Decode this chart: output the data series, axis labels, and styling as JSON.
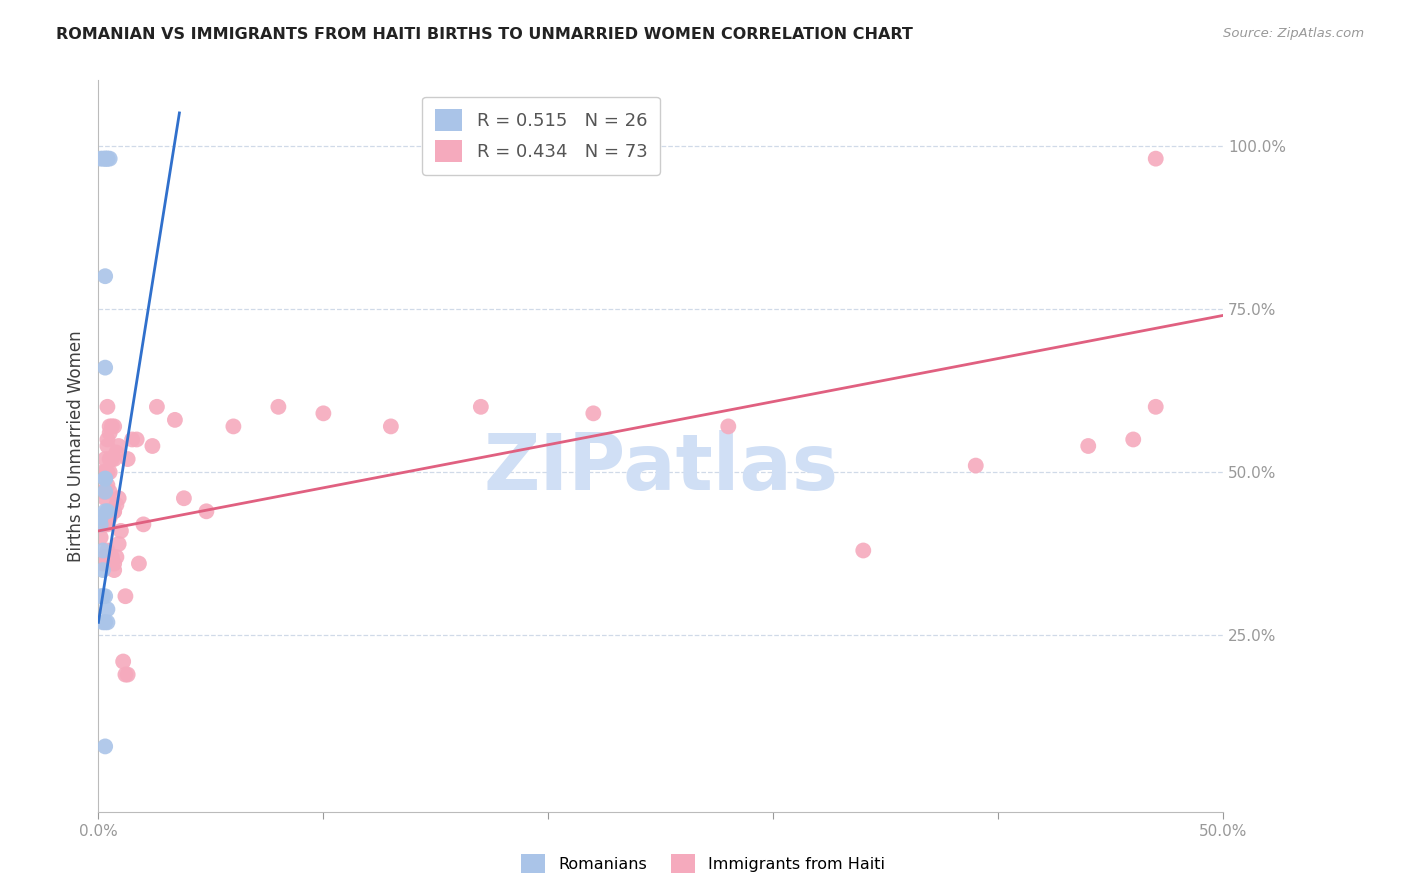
{
  "title": "ROMANIAN VS IMMIGRANTS FROM HAITI BIRTHS TO UNMARRIED WOMEN CORRELATION CHART",
  "source": "Source: ZipAtlas.com",
  "ylabel": "Births to Unmarried Women",
  "xlim": [
    0.0,
    0.5
  ],
  "ylim": [
    -0.02,
    1.1
  ],
  "xticks": [
    0.0,
    0.1,
    0.2,
    0.3,
    0.4,
    0.5
  ],
  "xticklabels": [
    "0.0%",
    "",
    "",
    "",
    "",
    "50.0%"
  ],
  "yticks": [
    0.25,
    0.5,
    0.75,
    1.0
  ],
  "yticklabels": [
    "25.0%",
    "50.0%",
    "75.0%",
    "100.0%"
  ],
  "R_blue": 0.515,
  "N_blue": 26,
  "R_pink": 0.434,
  "N_pink": 73,
  "blue_color": "#aac4e8",
  "pink_color": "#f5aabd",
  "blue_line_color": "#3070cc",
  "pink_line_color": "#e06080",
  "tick_color": "#5580cc",
  "watermark": "ZIPatlas",
  "watermark_color": "#d0dff5",
  "blue_line_x0": 0.0,
  "blue_line_y0": 0.27,
  "blue_line_x1": 0.036,
  "blue_line_y1": 1.05,
  "pink_line_x0": 0.0,
  "pink_line_y0": 0.41,
  "pink_line_x1": 0.5,
  "pink_line_y1": 0.74,
  "blue_x": [
    0.001,
    0.002,
    0.003,
    0.003,
    0.004,
    0.004,
    0.005,
    0.003,
    0.003,
    0.003,
    0.003,
    0.003,
    0.003,
    0.004,
    0.001,
    0.001,
    0.002,
    0.002,
    0.001,
    0.002,
    0.003,
    0.004,
    0.002,
    0.003,
    0.004,
    0.003
  ],
  "blue_y": [
    0.98,
    0.98,
    0.98,
    0.98,
    0.98,
    0.98,
    0.98,
    0.8,
    0.66,
    0.49,
    0.49,
    0.47,
    0.44,
    0.44,
    0.43,
    0.42,
    0.38,
    0.35,
    0.31,
    0.31,
    0.31,
    0.29,
    0.27,
    0.27,
    0.27,
    0.08
  ],
  "pink_x": [
    0.001,
    0.001,
    0.002,
    0.002,
    0.002,
    0.002,
    0.003,
    0.003,
    0.003,
    0.003,
    0.003,
    0.003,
    0.003,
    0.003,
    0.004,
    0.004,
    0.004,
    0.004,
    0.004,
    0.004,
    0.004,
    0.004,
    0.005,
    0.005,
    0.005,
    0.005,
    0.005,
    0.005,
    0.005,
    0.006,
    0.006,
    0.006,
    0.006,
    0.007,
    0.007,
    0.007,
    0.007,
    0.007,
    0.007,
    0.008,
    0.008,
    0.008,
    0.009,
    0.009,
    0.009,
    0.01,
    0.011,
    0.012,
    0.012,
    0.013,
    0.013,
    0.015,
    0.017,
    0.018,
    0.02,
    0.024,
    0.026,
    0.034,
    0.038,
    0.048,
    0.06,
    0.08,
    0.1,
    0.13,
    0.17,
    0.22,
    0.28,
    0.34,
    0.39,
    0.44,
    0.46,
    0.47,
    0.47
  ],
  "pink_y": [
    0.4,
    0.43,
    0.36,
    0.42,
    0.47,
    0.5,
    0.37,
    0.42,
    0.46,
    0.5,
    0.42,
    0.47,
    0.52,
    0.36,
    0.38,
    0.44,
    0.5,
    0.55,
    0.42,
    0.48,
    0.54,
    0.6,
    0.44,
    0.5,
    0.56,
    0.43,
    0.47,
    0.52,
    0.57,
    0.37,
    0.44,
    0.52,
    0.57,
    0.35,
    0.44,
    0.36,
    0.44,
    0.52,
    0.57,
    0.37,
    0.45,
    0.53,
    0.39,
    0.46,
    0.54,
    0.41,
    0.21,
    0.19,
    0.31,
    0.52,
    0.19,
    0.55,
    0.55,
    0.36,
    0.42,
    0.54,
    0.6,
    0.58,
    0.46,
    0.44,
    0.57,
    0.6,
    0.59,
    0.57,
    0.6,
    0.59,
    0.57,
    0.38,
    0.51,
    0.54,
    0.55,
    0.6,
    0.98
  ]
}
